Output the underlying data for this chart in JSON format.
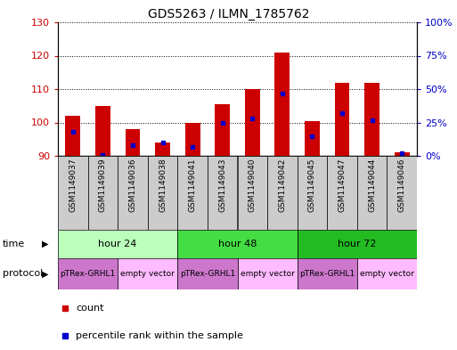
{
  "title": "GDS5263 / ILMN_1785762",
  "samples": [
    "GSM1149037",
    "GSM1149039",
    "GSM1149036",
    "GSM1149038",
    "GSM1149041",
    "GSM1149043",
    "GSM1149040",
    "GSM1149042",
    "GSM1149045",
    "GSM1149047",
    "GSM1149044",
    "GSM1149046"
  ],
  "count_values": [
    102,
    105,
    98,
    94,
    100,
    105.5,
    110,
    121,
    100.5,
    112,
    112,
    91
  ],
  "percentile_values": [
    18,
    1,
    8,
    10,
    7,
    25,
    28,
    47,
    15,
    32,
    27,
    2
  ],
  "ylim_left": [
    90,
    130
  ],
  "ylim_right": [
    0,
    100
  ],
  "yticks_left": [
    90,
    100,
    110,
    120,
    130
  ],
  "yticks_right": [
    0,
    25,
    50,
    75,
    100
  ],
  "yticklabels_right": [
    "0%",
    "25%",
    "50%",
    "75%",
    "100%"
  ],
  "bar_bottom": 90,
  "bar_color": "#cc0000",
  "percentile_color": "#0000cc",
  "time_groups": [
    {
      "label": "hour 24",
      "start": 0,
      "end": 4,
      "color": "#bbffbb"
    },
    {
      "label": "hour 48",
      "start": 4,
      "end": 8,
      "color": "#44dd44"
    },
    {
      "label": "hour 72",
      "start": 8,
      "end": 12,
      "color": "#22bb22"
    }
  ],
  "protocol_groups": [
    {
      "label": "pTRex-GRHL1",
      "start": 0,
      "end": 2,
      "color": "#cc77cc"
    },
    {
      "label": "empty vector",
      "start": 2,
      "end": 4,
      "color": "#ffbbff"
    },
    {
      "label": "pTRex-GRHL1",
      "start": 4,
      "end": 6,
      "color": "#cc77cc"
    },
    {
      "label": "empty vector",
      "start": 6,
      "end": 8,
      "color": "#ffbbff"
    },
    {
      "label": "pTRex-GRHL1",
      "start": 8,
      "end": 10,
      "color": "#cc77cc"
    },
    {
      "label": "empty vector",
      "start": 10,
      "end": 12,
      "color": "#ffbbff"
    }
  ],
  "legend_count_color": "#cc0000",
  "legend_percentile_color": "#0000cc",
  "axis_color_left": "#cc0000",
  "axis_color_right": "#0000cc",
  "bg_color": "#ffffff",
  "sample_bg": "#cccccc",
  "bar_width": 0.5
}
